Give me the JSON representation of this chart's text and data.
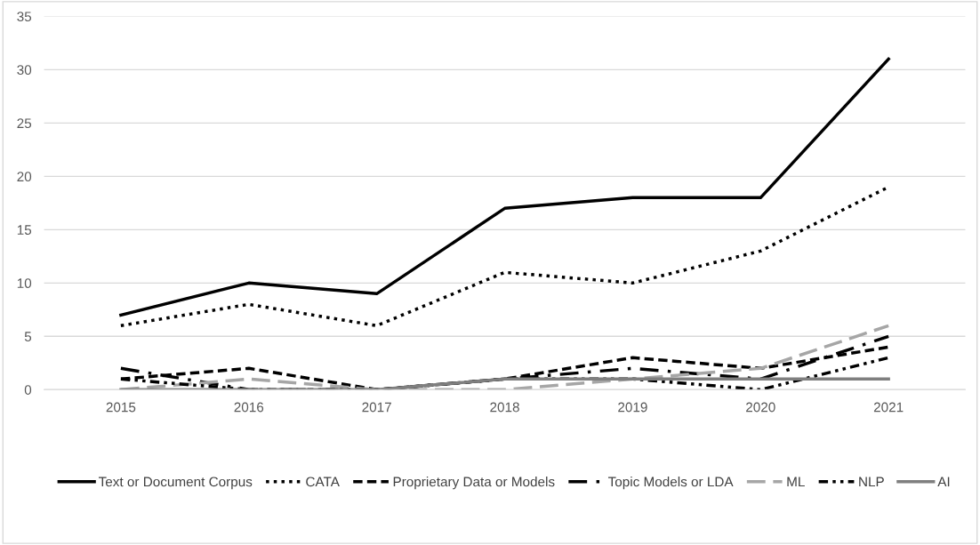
{
  "chart_data": {
    "type": "line",
    "categories": [
      "2015",
      "2016",
      "2017",
      "2018",
      "2019",
      "2020",
      "2021"
    ],
    "ylim": [
      0,
      35
    ],
    "yticks": [
      0,
      5,
      10,
      15,
      20,
      25,
      30,
      35
    ],
    "grid": "y",
    "legend": "bottom",
    "series": [
      {
        "name": "Text or Document Corpus",
        "color": "#000000",
        "line_style": "solid",
        "values": [
          7,
          10,
          9,
          17,
          18,
          18,
          31
        ]
      },
      {
        "name": "CATA",
        "color": "#000000",
        "line_style": "dotted",
        "values": [
          6,
          8,
          6,
          11,
          10,
          13,
          19
        ]
      },
      {
        "name": "Proprietary Data or Models",
        "color": "#000000",
        "line_style": "dashed",
        "values": [
          1,
          2,
          0,
          1,
          3,
          2,
          4
        ]
      },
      {
        "name": "Topic Models or LDA",
        "color": "#000000",
        "line_style": "longdashdot",
        "values": [
          2,
          0,
          0,
          1,
          2,
          1,
          5
        ]
      },
      {
        "name": "ML",
        "color": "#a6a6a6",
        "line_style": "longdash",
        "values": [
          0,
          1,
          0,
          0,
          1,
          2,
          6
        ]
      },
      {
        "name": "NLP",
        "color": "#000000",
        "line_style": "dashdotdot",
        "values": [
          1,
          0,
          0,
          1,
          1,
          0,
          3
        ]
      },
      {
        "name": "AI",
        "color": "#7f7f7f",
        "line_style": "solid",
        "values": [
          0,
          0,
          0,
          1,
          1,
          1,
          1
        ]
      }
    ]
  }
}
